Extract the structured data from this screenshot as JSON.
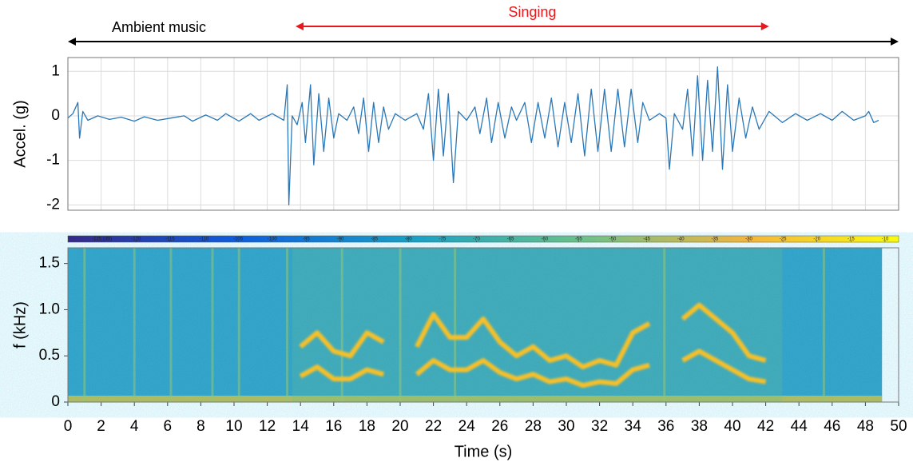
{
  "chart_data": [
    {
      "type": "line",
      "ylabel": "Accel. (g)",
      "xlim": [
        0,
        50
      ],
      "xticks": [
        0,
        2,
        4,
        6,
        8,
        10,
        12,
        14,
        16,
        18,
        20,
        22,
        24,
        26,
        28,
        30,
        32,
        34,
        36,
        38,
        40,
        42,
        44,
        46,
        48,
        50
      ],
      "ylim": [
        -2.12,
        1.31
      ],
      "yticks": [
        -2,
        -1,
        0,
        1
      ],
      "grid": true,
      "annotations": [
        {
          "text": "Ambient music",
          "x": [
            0,
            50
          ],
          "color": "#000000"
        },
        {
          "text": "Singing",
          "x": [
            13.7,
            42.2
          ],
          "color": "#e8191c"
        }
      ],
      "series": [
        {
          "color": "#2a78b8",
          "x": [
            0,
            0.3,
            0.6,
            0.7,
            0.9,
            1.2,
            1.8,
            2.5,
            3.2,
            4,
            4.6,
            5.4,
            6.2,
            7,
            7.5,
            8.3,
            9,
            9.5,
            10.3,
            11,
            11.5,
            12.3,
            13,
            13.2,
            13.3,
            13.5,
            13.8,
            14.1,
            14.3,
            14.6,
            14.8,
            15.1,
            15.4,
            15.7,
            16,
            16.3,
            16.8,
            17.2,
            17.5,
            17.8,
            18.1,
            18.4,
            18.7,
            19,
            19.3,
            19.7,
            20.3,
            21,
            21.4,
            21.7,
            22,
            22.3,
            22.6,
            22.9,
            23.2,
            23.5,
            24,
            24.5,
            24.8,
            25.2,
            25.5,
            25.9,
            26.3,
            26.7,
            27,
            27.5,
            27.9,
            28.3,
            28.7,
            29.1,
            29.5,
            29.9,
            30.3,
            30.7,
            31.1,
            31.5,
            31.9,
            32.3,
            32.7,
            33.1,
            33.5,
            33.9,
            34.3,
            34.6,
            35,
            35.6,
            36,
            36.2,
            36.5,
            37,
            37.3,
            37.6,
            37.9,
            38.2,
            38.5,
            38.8,
            39.1,
            39.4,
            39.7,
            40,
            40.4,
            40.8,
            41.2,
            41.6,
            42.2,
            43,
            43.8,
            44.5,
            45.3,
            46,
            46.6,
            47.3,
            48,
            48.2,
            48.5,
            48.8
          ],
          "values": [
            -0.05,
            0.05,
            0.3,
            -0.5,
            0.1,
            -0.1,
            0,
            -0.08,
            -0.03,
            -0.12,
            -0.02,
            -0.1,
            -0.05,
            0,
            -0.12,
            0.02,
            -0.1,
            0.05,
            -0.12,
            0.05,
            -0.1,
            0.05,
            -0.1,
            0.7,
            -2,
            0,
            -0.2,
            0.3,
            -0.6,
            0.7,
            -1.1,
            0.5,
            -0.8,
            0.4,
            -0.5,
            0.05,
            -0.1,
            0.2,
            -0.4,
            0.4,
            -0.8,
            0.3,
            -0.6,
            0.2,
            -0.3,
            0.05,
            -0.1,
            0.05,
            -0.3,
            0.5,
            -1,
            0.6,
            -0.9,
            0.5,
            -1.5,
            0.1,
            -0.1,
            0.2,
            -0.4,
            0.4,
            -0.6,
            0.3,
            -0.5,
            0.2,
            -0.1,
            0.3,
            -0.6,
            0.3,
            -0.5,
            0.4,
            -0.7,
            0.3,
            -0.6,
            0.5,
            -0.9,
            0.6,
            -0.8,
            0.6,
            -0.8,
            0.6,
            -0.7,
            0.6,
            -0.6,
            0.3,
            -0.1,
            0.05,
            -0.05,
            -1.2,
            0.05,
            -0.3,
            0.6,
            -0.9,
            0.9,
            -1,
            0.8,
            -0.8,
            1.1,
            -1.2,
            0.7,
            -0.8,
            0.4,
            -0.5,
            0.2,
            -0.3,
            0.1,
            -0.15,
            0.05,
            -0.1,
            0.05,
            -0.1,
            0.1,
            -0.1,
            0,
            0.1,
            -0.15,
            -0.1
          ]
        }
      ]
    },
    {
      "type": "spectrogram",
      "ylabel": "f (kHz)",
      "xlabel": "Time (s)",
      "xlim": [
        0,
        50
      ],
      "xticks": [
        0,
        2,
        4,
        6,
        8,
        10,
        12,
        14,
        16,
        18,
        20,
        22,
        24,
        26,
        28,
        30,
        32,
        34,
        36,
        38,
        40,
        42,
        44,
        46,
        48,
        50
      ],
      "ylim": [
        0,
        1.67
      ],
      "yticks": [
        0,
        0.5,
        {
          "value": 1,
          "label": "1.0"
        },
        1.5
      ],
      "time_range": [
        0,
        49
      ],
      "clim": [
        -130,
        -8
      ],
      "cticks": [
        {
          "value": -125,
          "label": "-125 (dB)"
        },
        -120,
        -115,
        -110,
        -105,
        -100,
        -95,
        -90,
        -85,
        -80,
        -75,
        -70,
        -65,
        -60,
        -55,
        -50,
        -45,
        -40,
        -35,
        -30,
        -25,
        -20,
        -15,
        -10
      ],
      "series": [
        {
          "color": "#f5c02a",
          "x": [
            13,
            14,
            15,
            16,
            17,
            18,
            19,
            20,
            21,
            22,
            23,
            24,
            25,
            26,
            27,
            28,
            29,
            30,
            31,
            32,
            33,
            34,
            35,
            36,
            37,
            38,
            39,
            40,
            41,
            42,
            43
          ],
          "values": [
            null,
            0.28,
            0.38,
            0.25,
            0.25,
            0.35,
            0.3,
            null,
            0.3,
            0.45,
            0.35,
            0.35,
            0.45,
            0.32,
            0.25,
            0.3,
            0.22,
            0.25,
            0.18,
            0.22,
            0.2,
            0.35,
            0.4,
            null,
            0.45,
            0.55,
            0.45,
            0.35,
            0.25,
            0.22,
            null
          ]
        },
        {
          "color": "#f5c02a",
          "x": [
            13,
            14,
            15,
            16,
            17,
            18,
            19,
            20,
            21,
            22,
            23,
            24,
            25,
            26,
            27,
            28,
            29,
            30,
            31,
            32,
            33,
            34,
            35,
            36,
            37,
            38,
            39,
            40,
            41,
            42,
            43
          ],
          "values": [
            null,
            0.6,
            0.75,
            0.55,
            0.5,
            0.75,
            0.65,
            null,
            0.6,
            0.95,
            0.7,
            0.7,
            0.9,
            0.65,
            0.5,
            0.6,
            0.45,
            0.5,
            0.38,
            0.45,
            0.4,
            0.75,
            0.85,
            null,
            0.9,
            1.05,
            0.9,
            0.75,
            0.5,
            0.45,
            null
          ]
        }
      ]
    }
  ]
}
